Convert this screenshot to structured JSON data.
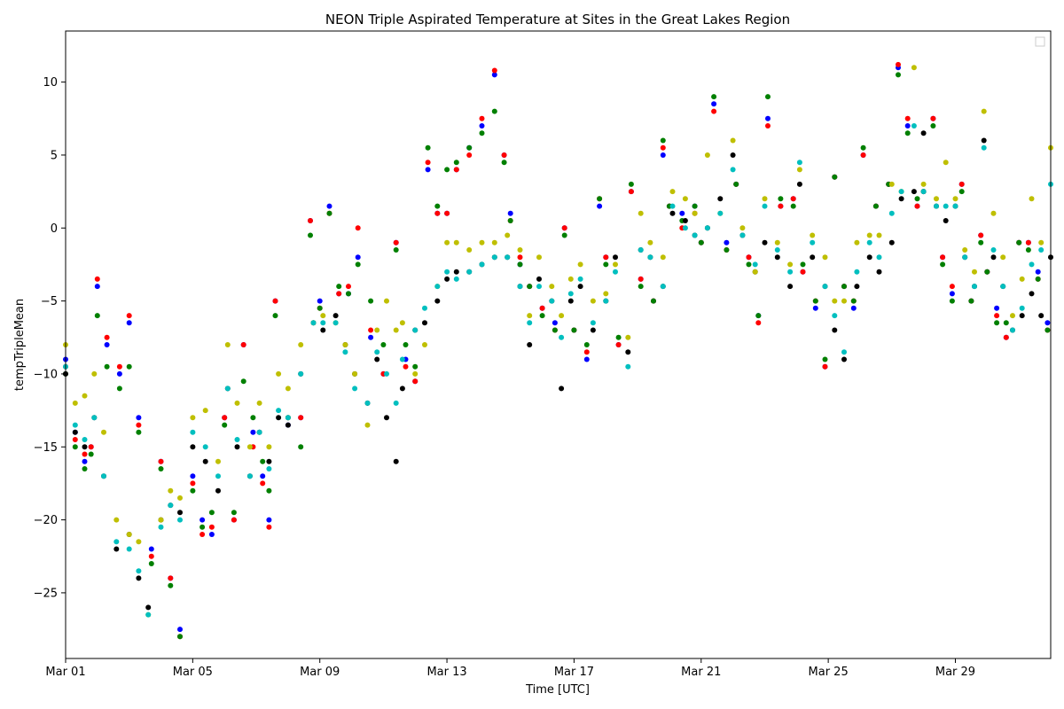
{
  "chart_data": {
    "type": "scatter",
    "title": "NEON Triple Aspirated Temperature at Sites in the Great Lakes Region",
    "xlabel": "Time [UTC]",
    "ylabel": "tempTripleMean",
    "x_unit": "day of March (UTC)",
    "xlim": [
      1,
      32
    ],
    "ylim": [
      -29.5,
      13.5
    ],
    "x_ticks": [
      {
        "value": 1,
        "label": "Mar 01"
      },
      {
        "value": 5,
        "label": "Mar 05"
      },
      {
        "value": 9,
        "label": "Mar 09"
      },
      {
        "value": 13,
        "label": "Mar 13"
      },
      {
        "value": 17,
        "label": "Mar 17"
      },
      {
        "value": 21,
        "label": "Mar 21"
      },
      {
        "value": 25,
        "label": "Mar 25"
      },
      {
        "value": 29,
        "label": "Mar 29"
      }
    ],
    "y_ticks": [
      {
        "value": -25,
        "label": "−25"
      },
      {
        "value": -20,
        "label": "−20"
      },
      {
        "value": -15,
        "label": "−15"
      },
      {
        "value": -10,
        "label": "−10"
      },
      {
        "value": -5,
        "label": "−5"
      },
      {
        "value": 0,
        "label": "0"
      },
      {
        "value": 5,
        "label": "5"
      },
      {
        "value": 10,
        "label": "10"
      }
    ],
    "grid": false,
    "legend": {
      "placement": "top-right",
      "entries": []
    },
    "series": [
      {
        "color": "#0000ff",
        "x": [
          1.0,
          1.3,
          1.6,
          1.8,
          2.0,
          2.3,
          2.7,
          3.0,
          3.3,
          3.7,
          4.0,
          4.3,
          4.6,
          5.0,
          5.3,
          5.6,
          6.0,
          6.3,
          6.6,
          6.9,
          7.2,
          7.4,
          7.6,
          8.0,
          8.4,
          8.7,
          9.0,
          9.3,
          9.6,
          9.9,
          10.2,
          10.6,
          11.0,
          11.4,
          11.7,
          12.0,
          12.4,
          12.7,
          13.0,
          13.3,
          13.7,
          14.1,
          14.5,
          14.8,
          15.0,
          15.3,
          15.6,
          16.0,
          16.4,
          16.7,
          17.0,
          17.4,
          17.8,
          18.0,
          18.4,
          18.8,
          19.1,
          19.5,
          19.8,
          20.0,
          20.4,
          20.8,
          21.0,
          21.4,
          21.8,
          22.1,
          22.5,
          22.8,
          23.1,
          23.5,
          23.9,
          24.2,
          24.6,
          24.9,
          25.2,
          25.5,
          25.8,
          26.1,
          26.5,
          26.9,
          27.2,
          27.5,
          27.8,
          28.0,
          28.3,
          28.6,
          28.9,
          29.2,
          29.5,
          29.8,
          30.0,
          30.3,
          30.6,
          31.0,
          31.3,
          31.6,
          31.9
        ],
        "y": [
          -9,
          -14,
          -16,
          -15,
          -4,
          -8,
          -10,
          -6.5,
          -13,
          -22,
          -16,
          -24,
          -27.5,
          -17,
          -20,
          -21,
          -13,
          -20,
          -8,
          -14,
          -17,
          -20,
          -5,
          -13.5,
          -13,
          0.5,
          -5,
          1.5,
          -4.5,
          -4.5,
          -2,
          -7.5,
          -10,
          -1,
          -9,
          -10.5,
          4,
          1,
          1,
          4,
          5.5,
          7,
          10.5,
          5,
          1,
          -2.5,
          -4,
          -5.5,
          -6.5,
          0,
          -7,
          -9,
          1.5,
          -2,
          -8,
          2.5,
          -3.5,
          -5,
          5,
          1.5,
          1,
          1.5,
          -1,
          8.5,
          -1,
          3,
          -2,
          -6,
          7.5,
          1.5,
          2,
          -3,
          -5.5,
          -9.5,
          3.5,
          -4,
          -5.5,
          5,
          1.5,
          3,
          11,
          7,
          1.5,
          2.5,
          7.5,
          -2,
          -4.5,
          3,
          -5,
          -0.5,
          -3,
          -5.5,
          -7.5,
          -1,
          -1,
          -3,
          -6.5
        ]
      },
      {
        "color": "#ff0000",
        "x": [
          1.0,
          1.3,
          1.6,
          1.8,
          2.0,
          2.3,
          2.7,
          3.0,
          3.3,
          3.7,
          4.0,
          4.3,
          4.6,
          5.0,
          5.3,
          5.6,
          6.0,
          6.3,
          6.6,
          6.9,
          7.2,
          7.4,
          7.6,
          8.0,
          8.4,
          8.7,
          9.0,
          9.3,
          9.6,
          9.9,
          10.2,
          10.6,
          11.0,
          11.4,
          11.7,
          12.0,
          12.4,
          12.7,
          13.0,
          13.3,
          13.7,
          14.1,
          14.5,
          14.8,
          15.0,
          15.3,
          15.6,
          16.0,
          16.4,
          16.7,
          17.0,
          17.4,
          17.8,
          18.0,
          18.4,
          18.8,
          19.1,
          19.5,
          19.8,
          20.0,
          20.4,
          20.8,
          21.0,
          21.4,
          21.8,
          22.1,
          22.5,
          22.8,
          23.1,
          23.5,
          23.9,
          24.2,
          24.6,
          24.9,
          25.2,
          25.5,
          25.8,
          26.1,
          26.5,
          26.9,
          27.2,
          27.5,
          27.8,
          28.0,
          28.3,
          28.6,
          28.9,
          29.2,
          29.5,
          29.8,
          30.0,
          30.3,
          30.6,
          31.0,
          31.3,
          31.6,
          31.9
        ],
        "y": [
          -9.5,
          -14.5,
          -15.5,
          -15,
          -3.5,
          -7.5,
          -9.5,
          -6,
          -13.5,
          -22.5,
          -16,
          -24,
          -28,
          -17.5,
          -21,
          -20.5,
          -13,
          -20,
          -8,
          -15,
          -17.5,
          -20.5,
          -5,
          -13,
          -13,
          0.5,
          -5.5,
          1,
          -4.5,
          -4,
          0,
          -7,
          -10,
          -1,
          -9.5,
          -10.5,
          4.5,
          1,
          1,
          4,
          5,
          7.5,
          10.8,
          5,
          0.5,
          -2,
          -4,
          -5.5,
          -7,
          0,
          -7,
          -8.5,
          2,
          -2,
          -8,
          2.5,
          -3.5,
          -5,
          5.5,
          1.5,
          0,
          1,
          -1,
          8,
          -1.5,
          3,
          -2,
          -6.5,
          7,
          1.5,
          2,
          -3,
          -5,
          -9.5,
          3.5,
          -4,
          -5,
          5,
          1.5,
          3,
          11.2,
          7.5,
          1.5,
          2.5,
          7.5,
          -2,
          -4,
          3,
          -5,
          -0.5,
          -3,
          -6,
          -7.5,
          -1,
          -1,
          -3.5,
          -7
        ]
      },
      {
        "color": "#008000",
        "x": [
          1.0,
          1.3,
          1.6,
          1.8,
          2.0,
          2.3,
          2.7,
          3.0,
          3.3,
          3.7,
          4.0,
          4.3,
          4.6,
          5.0,
          5.3,
          5.6,
          6.0,
          6.3,
          6.6,
          6.9,
          7.2,
          7.4,
          7.6,
          8.0,
          8.4,
          8.7,
          9.0,
          9.3,
          9.6,
          9.9,
          10.2,
          10.6,
          11.0,
          11.4,
          11.7,
          12.0,
          12.4,
          12.7,
          13.0,
          13.3,
          13.7,
          14.1,
          14.5,
          14.8,
          15.0,
          15.3,
          15.6,
          16.0,
          16.4,
          16.7,
          17.0,
          17.4,
          17.8,
          18.0,
          18.4,
          18.8,
          19.1,
          19.5,
          19.8,
          20.0,
          20.4,
          20.8,
          21.0,
          21.4,
          21.8,
          22.1,
          22.5,
          22.8,
          23.1,
          23.5,
          23.9,
          24.2,
          24.6,
          24.9,
          25.2,
          25.5,
          25.8,
          26.1,
          26.5,
          26.9,
          27.2,
          27.5,
          27.8,
          28.0,
          28.3,
          28.6,
          28.9,
          29.2,
          29.5,
          29.8,
          30.0,
          30.3,
          30.6,
          31.0,
          31.3,
          31.6,
          31.9
        ],
        "y": [
          -10,
          -15,
          -16.5,
          -15.5,
          -6,
          -9.5,
          -11,
          -9.5,
          -14,
          -23,
          -16.5,
          -24.5,
          -28,
          -18,
          -20.5,
          -19.5,
          -13.5,
          -19.5,
          -10.5,
          -13,
          -16,
          -18,
          -6,
          -13,
          -15,
          -0.5,
          -5.5,
          1,
          -4,
          -4.5,
          -2.5,
          -5,
          -8,
          -1.5,
          -8,
          -9.5,
          5.5,
          1.5,
          4,
          4.5,
          5.5,
          6.5,
          8,
          4.5,
          0.5,
          -2.5,
          -4,
          -6,
          -7,
          -0.5,
          -7,
          -8,
          2,
          -2.5,
          -7.5,
          3,
          -4,
          -5,
          6,
          1.5,
          0.5,
          1.5,
          -1,
          9,
          -1.5,
          3,
          -2.5,
          -6,
          9,
          2,
          1.5,
          -2.5,
          -5,
          -9,
          3.5,
          -4,
          -5,
          5.5,
          1.5,
          3,
          10.5,
          6.5,
          2,
          2.5,
          7,
          -2.5,
          -5,
          2.5,
          -5,
          -1,
          -3,
          -6.5,
          -6.5,
          -1,
          -1.5,
          -3.5,
          -7
        ]
      },
      {
        "color": "#000000",
        "x": [
          1.0,
          1.3,
          1.6,
          1.9,
          2.2,
          2.6,
          3.0,
          3.3,
          3.6,
          4.0,
          4.3,
          4.6,
          5.0,
          5.4,
          5.8,
          6.1,
          6.4,
          6.8,
          7.1,
          7.4,
          7.7,
          8.0,
          8.4,
          8.8,
          9.1,
          9.5,
          9.8,
          10.1,
          10.5,
          10.8,
          11.1,
          11.4,
          11.6,
          12.0,
          12.3,
          12.7,
          13.0,
          13.3,
          13.7,
          14.1,
          14.5,
          14.9,
          15.3,
          15.6,
          15.9,
          16.3,
          16.6,
          16.9,
          17.2,
          17.6,
          18.0,
          18.3,
          18.7,
          19.1,
          19.4,
          19.8,
          20.1,
          20.5,
          20.8,
          21.2,
          21.6,
          22.0,
          22.3,
          22.7,
          23.0,
          23.4,
          23.8,
          24.1,
          24.5,
          24.9,
          25.2,
          25.5,
          25.9,
          26.3,
          26.6,
          27.0,
          27.3,
          27.7,
          28.0,
          28.4,
          28.7,
          29.0,
          29.3,
          29.6,
          29.9,
          30.2,
          30.5,
          30.8,
          31.1,
          31.4,
          31.7,
          32.0
        ],
        "y": [
          -10,
          -14,
          -15,
          -13,
          -17,
          -22,
          -21,
          -24,
          -26,
          -20,
          -19,
          -19.5,
          -15,
          -16,
          -18,
          -11,
          -15,
          -17,
          -14,
          -16,
          -13,
          -13.5,
          -10,
          -6.5,
          -7,
          -6,
          -8,
          -10,
          -12,
          -9,
          -13,
          -16,
          -11,
          -7,
          -6.5,
          -5,
          -3.5,
          -3,
          -3,
          -2.5,
          -2,
          -2,
          -4,
          -8,
          -3.5,
          -5,
          -11,
          -5,
          -4,
          -7,
          -5,
          -2,
          -8.5,
          -1.5,
          -2,
          -4,
          1,
          0.5,
          -0.5,
          0,
          2,
          5,
          -0.5,
          -3,
          -1,
          -2,
          -4,
          3,
          -2,
          -4,
          -7,
          -9,
          -4,
          -2,
          -3,
          -1,
          2,
          2.5,
          6.5,
          1.5,
          0.5,
          1.5,
          -2,
          -4,
          6,
          -2,
          -4,
          -7,
          -6,
          -4.5,
          -6,
          -2
        ]
      },
      {
        "color": "#bfbf00",
        "x": [
          1.0,
          1.3,
          1.6,
          1.9,
          2.2,
          2.6,
          3.0,
          3.3,
          3.6,
          4.0,
          4.3,
          4.6,
          5.0,
          5.4,
          5.8,
          6.1,
          6.4,
          6.8,
          7.1,
          7.4,
          7.7,
          8.0,
          8.4,
          8.8,
          9.1,
          9.5,
          9.8,
          10.1,
          10.5,
          10.8,
          11.1,
          11.4,
          11.6,
          12.0,
          12.3,
          12.7,
          13.0,
          13.3,
          13.7,
          14.1,
          14.5,
          14.9,
          15.3,
          15.6,
          15.9,
          16.3,
          16.6,
          16.9,
          17.2,
          17.6,
          18.0,
          18.3,
          18.7,
          19.1,
          19.4,
          19.8,
          20.1,
          20.5,
          20.8,
          21.2,
          21.6,
          22.0,
          22.3,
          22.7,
          23.0,
          23.4,
          23.8,
          24.1,
          24.5,
          24.9,
          25.2,
          25.5,
          25.9,
          26.3,
          26.6,
          27.0,
          27.3,
          27.7,
          28.0,
          28.4,
          28.7,
          29.0,
          29.3,
          29.6,
          29.9,
          30.2,
          30.5,
          30.8,
          31.1,
          31.4,
          31.7,
          32.0
        ],
        "y": [
          -8,
          -12,
          -11.5,
          -10,
          -14,
          -20,
          -21,
          -21.5,
          -26.5,
          -20,
          -18,
          -18.5,
          -13,
          -12.5,
          -16,
          -8,
          -12,
          -15,
          -12,
          -15,
          -10,
          -11,
          -8,
          -6.5,
          -6,
          -6.5,
          -8,
          -10,
          -13.5,
          -7,
          -5,
          -7,
          -6.5,
          -10,
          -8,
          -4,
          -1,
          -1,
          -1.5,
          -1,
          -1,
          -0.5,
          -1.5,
          -6,
          -2,
          -4,
          -6,
          -3.5,
          -2.5,
          -5,
          -4.5,
          -2.5,
          -7.5,
          1,
          -1,
          -2,
          2.5,
          2,
          1,
          5,
          1,
          6,
          0,
          -3,
          2,
          -1,
          -2.5,
          4,
          -0.5,
          -2,
          -5,
          -5,
          -1,
          -0.5,
          -0.5,
          3,
          2.5,
          11,
          3,
          2,
          4.5,
          2,
          -1.5,
          -3,
          8,
          1,
          -2,
          -6,
          -3.5,
          2,
          -1,
          5.5
        ]
      },
      {
        "color": "#00bfbf",
        "x": [
          1.0,
          1.3,
          1.6,
          1.9,
          2.2,
          2.6,
          3.0,
          3.3,
          3.6,
          4.0,
          4.3,
          4.6,
          5.0,
          5.4,
          5.8,
          6.1,
          6.4,
          6.8,
          7.1,
          7.4,
          7.7,
          8.0,
          8.4,
          8.8,
          9.1,
          9.5,
          9.8,
          10.1,
          10.5,
          10.8,
          11.1,
          11.4,
          11.6,
          12.0,
          12.3,
          12.7,
          13.0,
          13.3,
          13.7,
          14.1,
          14.5,
          14.9,
          15.3,
          15.6,
          15.9,
          16.3,
          16.6,
          16.9,
          17.2,
          17.6,
          18.0,
          18.3,
          18.7,
          19.1,
          19.4,
          19.8,
          20.1,
          20.5,
          20.8,
          21.2,
          21.6,
          22.0,
          22.3,
          22.7,
          23.0,
          23.4,
          23.8,
          24.1,
          24.5,
          24.9,
          25.2,
          25.5,
          25.9,
          26.3,
          26.6,
          27.0,
          27.3,
          27.7,
          28.0,
          28.4,
          28.7,
          29.0,
          29.3,
          29.6,
          29.9,
          30.2,
          30.5,
          30.8,
          31.1,
          31.4,
          31.7,
          32.0
        ],
        "y": [
          -9.5,
          -13.5,
          -14.5,
          -13,
          -17,
          -21.5,
          -22,
          -23.5,
          -26.5,
          -20.5,
          -19,
          -20,
          -14,
          -15,
          -17,
          -11,
          -14.5,
          -17,
          -14,
          -16.5,
          -12.5,
          -13,
          -10,
          -6.5,
          -6.5,
          -6.5,
          -8.5,
          -11,
          -12,
          -8.5,
          -10,
          -12,
          -9,
          -7,
          -5.5,
          -4,
          -3,
          -3.5,
          -3,
          -2.5,
          -2,
          -2,
          -4,
          -6.5,
          -4,
          -5,
          -7.5,
          -4.5,
          -3.5,
          -6.5,
          -5,
          -3,
          -9.5,
          -1.5,
          -2,
          -4,
          1.5,
          0,
          -0.5,
          0,
          1,
          4,
          -0.5,
          -2.5,
          1.5,
          -1.5,
          -3,
          4.5,
          -1,
          -4,
          -6,
          -8.5,
          -3,
          -1,
          -2,
          1,
          2.5,
          7,
          2.5,
          1.5,
          1.5,
          1.5,
          -2,
          -4,
          5.5,
          -1.5,
          -4,
          -7,
          -5.5,
          -2.5,
          -1.5,
          3
        ]
      }
    ]
  }
}
